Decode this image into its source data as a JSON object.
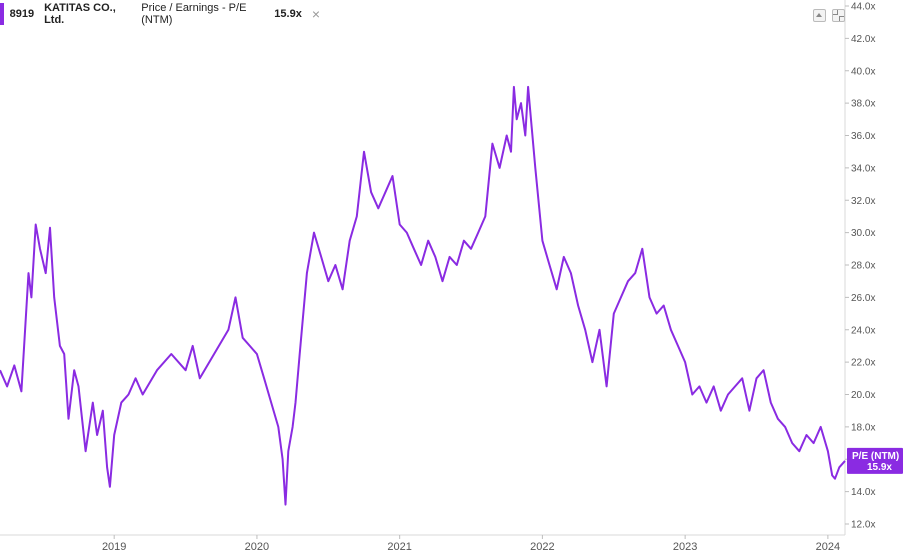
{
  "legend": {
    "ticker": "8919",
    "company": "KATITAS CO., Ltd.",
    "metric": "Price / Earnings - P/E (NTM)",
    "value": "15.9x",
    "close_glyph": "×",
    "color": "#8a2be2"
  },
  "icons": [
    "arrow-up-icon",
    "collapse-icon"
  ],
  "badge": {
    "label": "P/E (NTM)",
    "value": "15.9x"
  },
  "chart_data": {
    "type": "line",
    "title": "",
    "xlabel": "",
    "ylabel": "",
    "ylim": [
      12,
      44
    ],
    "xlim": [
      2018.2,
      2024.12
    ],
    "grid": false,
    "y_ticks": [
      12,
      14,
      16,
      18,
      20,
      22,
      24,
      26,
      28,
      30,
      32,
      34,
      36,
      38,
      40,
      42,
      44
    ],
    "y_tick_labels": [
      "12.0x",
      "14.0x",
      "16.0x",
      "18.0x",
      "20.0x",
      "22.0x",
      "24.0x",
      "26.0x",
      "28.0x",
      "30.0x",
      "32.0x",
      "34.0x",
      "36.0x",
      "38.0x",
      "40.0x",
      "42.0x",
      "44.0x"
    ],
    "x_ticks": [
      2019,
      2020,
      2021,
      2022,
      2023,
      2024
    ],
    "x_tick_labels": [
      "2019",
      "2020",
      "2021",
      "2022",
      "2023",
      "2024"
    ],
    "series": [
      {
        "name": "P/E (NTM)",
        "color": "#8a2be2",
        "x": [
          2018.2,
          2018.25,
          2018.3,
          2018.35,
          2018.4,
          2018.42,
          2018.45,
          2018.48,
          2018.52,
          2018.55,
          2018.58,
          2018.62,
          2018.65,
          2018.68,
          2018.72,
          2018.75,
          2018.8,
          2018.85,
          2018.88,
          2018.92,
          2018.95,
          2018.97,
          2019.0,
          2019.05,
          2019.1,
          2019.15,
          2019.2,
          2019.3,
          2019.4,
          2019.5,
          2019.55,
          2019.6,
          2019.7,
          2019.8,
          2019.85,
          2019.9,
          2019.95,
          2020.0,
          2020.05,
          2020.1,
          2020.15,
          2020.18,
          2020.2,
          2020.22,
          2020.25,
          2020.27,
          2020.3,
          2020.35,
          2020.4,
          2020.45,
          2020.5,
          2020.55,
          2020.6,
          2020.65,
          2020.7,
          2020.75,
          2020.8,
          2020.85,
          2020.9,
          2020.95,
          2021.0,
          2021.05,
          2021.1,
          2021.15,
          2021.2,
          2021.25,
          2021.3,
          2021.35,
          2021.4,
          2021.45,
          2021.5,
          2021.55,
          2021.6,
          2021.65,
          2021.7,
          2021.75,
          2021.78,
          2021.8,
          2021.82,
          2021.85,
          2021.88,
          2021.9,
          2021.95,
          2022.0,
          2022.05,
          2022.1,
          2022.15,
          2022.2,
          2022.25,
          2022.3,
          2022.35,
          2022.4,
          2022.45,
          2022.5,
          2022.55,
          2022.6,
          2022.65,
          2022.7,
          2022.75,
          2022.8,
          2022.85,
          2022.9,
          2022.95,
          2023.0,
          2023.05,
          2023.1,
          2023.15,
          2023.2,
          2023.25,
          2023.3,
          2023.35,
          2023.4,
          2023.45,
          2023.5,
          2023.55,
          2023.6,
          2023.65,
          2023.7,
          2023.75,
          2023.8,
          2023.85,
          2023.9,
          2023.95,
          2024.0,
          2024.03,
          2024.05,
          2024.08,
          2024.12
        ],
        "y": [
          21.5,
          20.5,
          21.8,
          20.2,
          27.5,
          26.0,
          30.5,
          29.0,
          27.5,
          30.3,
          26.0,
          23.0,
          22.5,
          18.5,
          21.5,
          20.5,
          16.5,
          19.5,
          17.5,
          19.0,
          15.5,
          14.3,
          17.5,
          19.5,
          20.0,
          21.0,
          20.0,
          21.5,
          22.5,
          21.5,
          23.0,
          21.0,
          22.5,
          24.0,
          26.0,
          23.5,
          23.0,
          22.5,
          21.0,
          19.5,
          18.0,
          16.0,
          13.2,
          16.5,
          18.0,
          19.5,
          22.5,
          27.5,
          30.0,
          28.5,
          27.0,
          28.0,
          26.5,
          29.5,
          31.0,
          35.0,
          32.5,
          31.5,
          32.5,
          33.5,
          30.5,
          30.0,
          29.0,
          28.0,
          29.5,
          28.5,
          27.0,
          28.5,
          28.0,
          29.5,
          29.0,
          30.0,
          31.0,
          35.5,
          34.0,
          36.0,
          35.0,
          39.0,
          37.0,
          38.0,
          36.0,
          39.0,
          34.0,
          29.5,
          28.0,
          26.5,
          28.5,
          27.5,
          25.5,
          24.0,
          22.0,
          24.0,
          20.5,
          25.0,
          26.0,
          27.0,
          27.5,
          29.0,
          26.0,
          25.0,
          25.5,
          24.0,
          23.0,
          22.0,
          20.0,
          20.5,
          19.5,
          20.5,
          19.0,
          20.0,
          20.5,
          21.0,
          19.0,
          21.0,
          21.5,
          19.5,
          18.5,
          18.0,
          17.0,
          16.5,
          17.5,
          17.0,
          18.0,
          16.5,
          15.0,
          14.8,
          15.5,
          15.9
        ]
      }
    ]
  }
}
